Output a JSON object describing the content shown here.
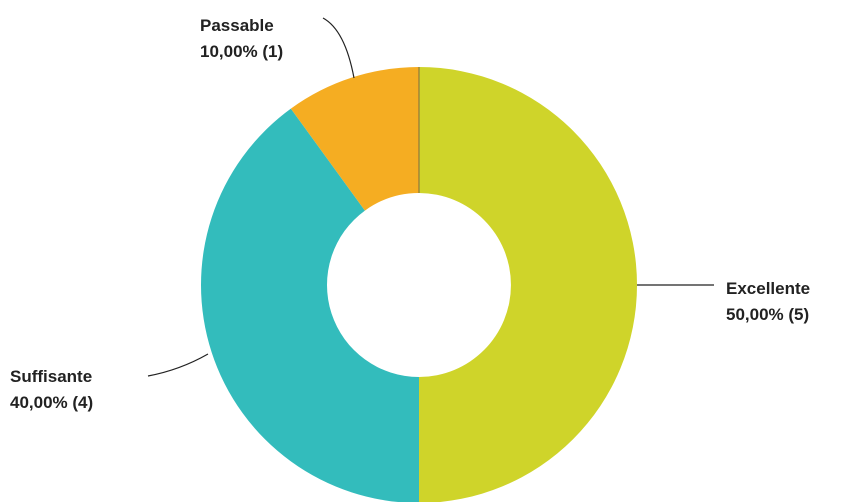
{
  "chart_data": {
    "type": "pie",
    "donut": true,
    "start_angle_deg": 0,
    "direction": "clockwise",
    "slices": [
      {
        "name": "Excellente",
        "value": 5,
        "percent_label": "50,00% (5)",
        "color": "#cfd42a"
      },
      {
        "name": "Suffisante",
        "value": 4,
        "percent_label": "40,00% (4)",
        "color": "#33bcbc"
      },
      {
        "name": "Passable",
        "value": 1,
        "percent_label": "10,00% (1)",
        "color": "#f5ad22"
      }
    ],
    "legend": "none",
    "labels": "outside with leader lines"
  }
}
